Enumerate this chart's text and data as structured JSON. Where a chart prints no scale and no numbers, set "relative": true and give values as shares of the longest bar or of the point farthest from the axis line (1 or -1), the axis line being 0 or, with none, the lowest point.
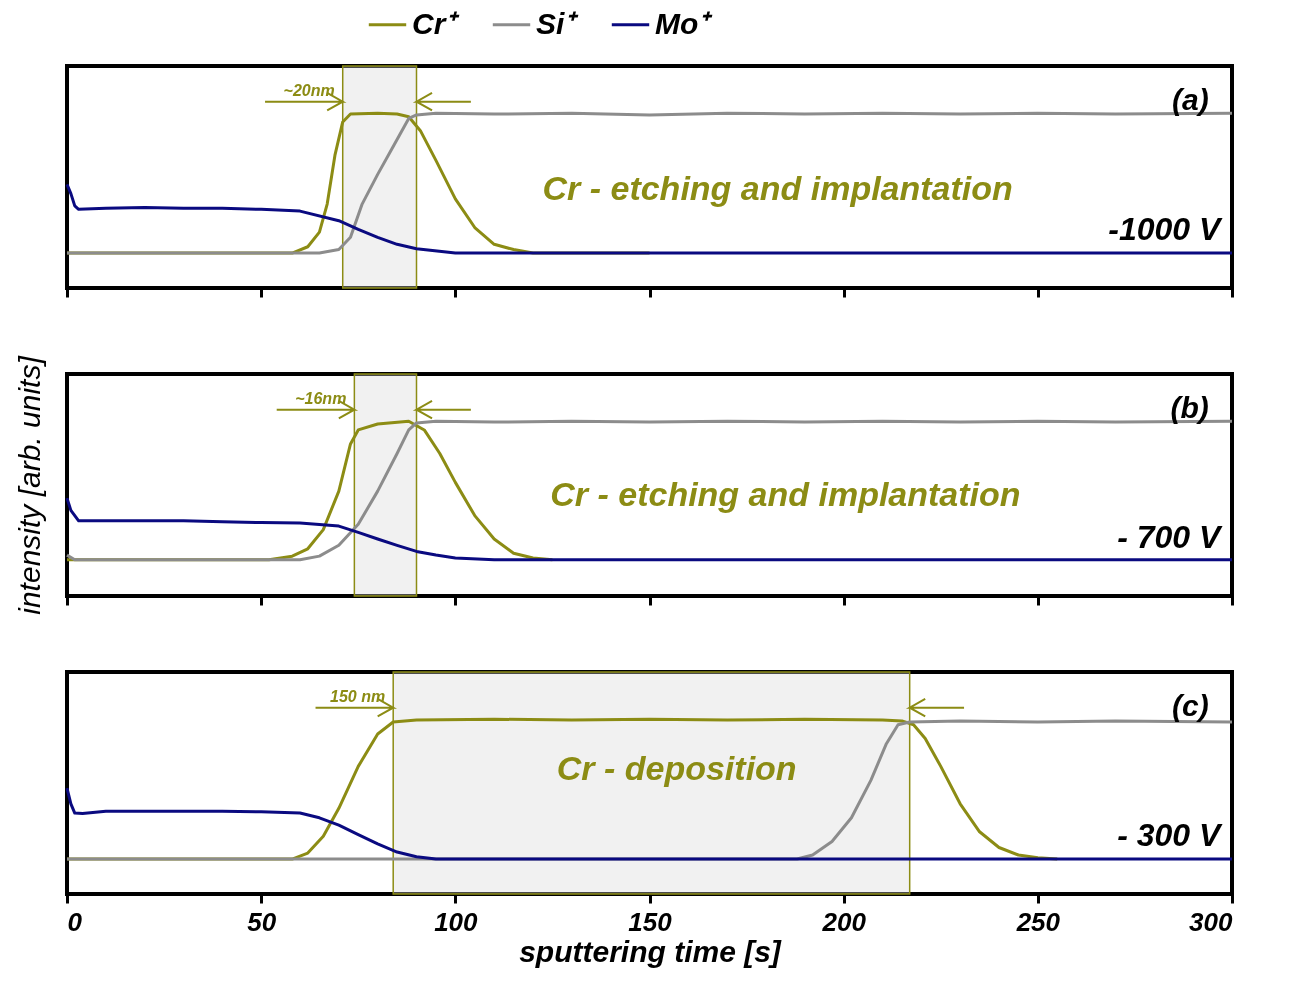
{
  "chart_data": [
    {
      "type": "line",
      "relative": true,
      "legend": "top",
      "tick_labels": false,
      "xlim": [
        0,
        300
      ],
      "xticks": [
        0,
        50,
        100,
        150,
        200,
        250,
        300
      ],
      "annotations": [
        "(a)",
        "-1000 V",
        "Cr - etching and implantation"
      ],
      "bands": [
        {
          "axis": "x",
          "from": 71,
          "to": 90,
          "label": "~20nm",
          "color": "#8c8c14"
        }
      ],
      "series": [
        {
          "name": "Cr⁺",
          "color": "#8c8c14",
          "x": [
            0,
            58,
            62,
            65,
            67,
            69,
            71,
            73,
            80,
            85,
            88,
            91,
            95,
            100,
            105,
            110,
            115,
            120,
            150
          ],
          "values": [
            0.2,
            0.2,
            0.236,
            0.32,
            0.48,
            0.76,
            0.95,
            0.995,
            1.0,
            0.995,
            0.98,
            0.9,
            0.73,
            0.51,
            0.346,
            0.25,
            0.22,
            0.2,
            0.2
          ]
        },
        {
          "name": "Si⁺",
          "color": "#8c8c8c",
          "x": [
            0,
            20,
            40,
            65,
            70,
            73,
            76,
            80,
            84,
            88,
            90,
            95,
            110,
            130,
            150,
            170,
            190,
            210,
            230,
            250,
            270,
            300
          ],
          "values": [
            0.2,
            0.2,
            0.2,
            0.2,
            0.22,
            0.29,
            0.48,
            0.65,
            0.81,
            0.97,
            0.99,
            1.0,
            0.995,
            1.0,
            0.99,
            1.0,
            0.995,
            1.0,
            0.995,
            1.0,
            0.995,
            1.0
          ]
        },
        {
          "name": "Mo⁺",
          "color": "#0a0a80",
          "x": [
            0,
            1,
            2,
            3,
            10,
            20,
            30,
            40,
            50,
            60,
            70,
            75,
            80,
            85,
            90,
            100,
            120,
            200,
            300
          ],
          "values": [
            0.593,
            0.54,
            0.47,
            0.45,
            0.456,
            0.46,
            0.456,
            0.456,
            0.45,
            0.44,
            0.385,
            0.335,
            0.29,
            0.25,
            0.225,
            0.2,
            0.2,
            0.2,
            0.2
          ]
        }
      ]
    },
    {
      "type": "line",
      "relative": true,
      "legend": false,
      "tick_labels": false,
      "xlim": [
        0,
        300
      ],
      "xticks": [
        0,
        50,
        100,
        150,
        200,
        250,
        300
      ],
      "ylabel": "intensity [arb. units]",
      "annotations": [
        "(b)",
        "- 700 V",
        "Cr - etching and implantation"
      ],
      "bands": [
        {
          "axis": "x",
          "from": 74,
          "to": 90,
          "label": "~16nm",
          "color": "#8c8c14"
        }
      ],
      "series": [
        {
          "color": "#8c8c14",
          "x": [
            0,
            20,
            40,
            52,
            58,
            62,
            66,
            70,
            73,
            75,
            80,
            88,
            92,
            96,
            100,
            105,
            110,
            115,
            120,
            125
          ],
          "values": [
            0.207,
            0.207,
            0.207,
            0.207,
            0.228,
            0.27,
            0.38,
            0.6,
            0.87,
            0.95,
            0.984,
            1.0,
            0.95,
            0.815,
            0.65,
            0.46,
            0.326,
            0.245,
            0.217,
            0.207
          ]
        },
        {
          "color": "#8c8c8c",
          "x": [
            0,
            2,
            20,
            40,
            60,
            65,
            70,
            75,
            80,
            85,
            88,
            90,
            95,
            110,
            130,
            150,
            170,
            190,
            210,
            230,
            250,
            270,
            300
          ],
          "values": [
            0.234,
            0.207,
            0.207,
            0.207,
            0.207,
            0.228,
            0.29,
            0.41,
            0.6,
            0.815,
            0.95,
            0.99,
            1.0,
            0.995,
            1.0,
            0.995,
            1.0,
            0.995,
            1.0,
            0.995,
            1.0,
            0.995,
            1.0
          ]
        },
        {
          "color": "#0a0a80",
          "x": [
            0,
            1,
            3,
            10,
            20,
            30,
            40,
            50,
            60,
            70,
            75,
            80,
            85,
            90,
            95,
            100,
            110,
            200,
            300
          ],
          "values": [
            0.56,
            0.49,
            0.43,
            0.43,
            0.43,
            0.43,
            0.425,
            0.42,
            0.418,
            0.4,
            0.364,
            0.326,
            0.29,
            0.255,
            0.234,
            0.217,
            0.207,
            0.207,
            0.207
          ]
        }
      ]
    },
    {
      "type": "line",
      "relative": true,
      "legend": false,
      "tick_labels": "x",
      "xlim": [
        0,
        300
      ],
      "xticks": [
        0,
        50,
        100,
        150,
        200,
        250,
        300
      ],
      "xlabel": "sputtering time [s]",
      "annotations": [
        "(c)",
        "- 300 V",
        "Cr - deposition"
      ],
      "bands": [
        {
          "axis": "x",
          "from": 84,
          "to": 217,
          "label": "150 nm",
          "color": "#8c8c14"
        }
      ],
      "series": [
        {
          "color": "#8c8c14",
          "x": [
            0,
            58,
            62,
            66,
            70,
            75,
            80,
            84,
            90,
            110,
            130,
            150,
            170,
            190,
            210,
            215,
            218,
            221,
            225,
            230,
            235,
            240,
            245,
            250,
            255
          ],
          "values": [
            0.2,
            0.2,
            0.234,
            0.33,
            0.49,
            0.73,
            0.915,
            0.984,
            0.995,
            1.0,
            0.995,
            1.0,
            0.995,
            1.0,
            0.995,
            0.99,
            0.968,
            0.89,
            0.73,
            0.516,
            0.356,
            0.266,
            0.223,
            0.207,
            0.2
          ]
        },
        {
          "color": "#8c8c8c",
          "x": [
            0,
            50,
            100,
            150,
            188,
            192,
            197,
            202,
            207,
            211,
            214,
            217,
            230,
            250,
            270,
            300
          ],
          "values": [
            0.2,
            0.2,
            0.2,
            0.2,
            0.2,
            0.223,
            0.3,
            0.436,
            0.65,
            0.86,
            0.968,
            0.984,
            0.99,
            0.984,
            0.99,
            0.984
          ]
        },
        {
          "color": "#0a0a80",
          "x": [
            0,
            1,
            2,
            4,
            10,
            20,
            30,
            40,
            50,
            60,
            65,
            70,
            75,
            80,
            85,
            90,
            95,
            150,
            200,
            300
          ],
          "values": [
            0.606,
            0.516,
            0.463,
            0.46,
            0.473,
            0.473,
            0.473,
            0.473,
            0.47,
            0.463,
            0.436,
            0.394,
            0.34,
            0.287,
            0.24,
            0.213,
            0.2,
            0.2,
            0.2,
            0.2
          ]
        }
      ]
    }
  ]
}
